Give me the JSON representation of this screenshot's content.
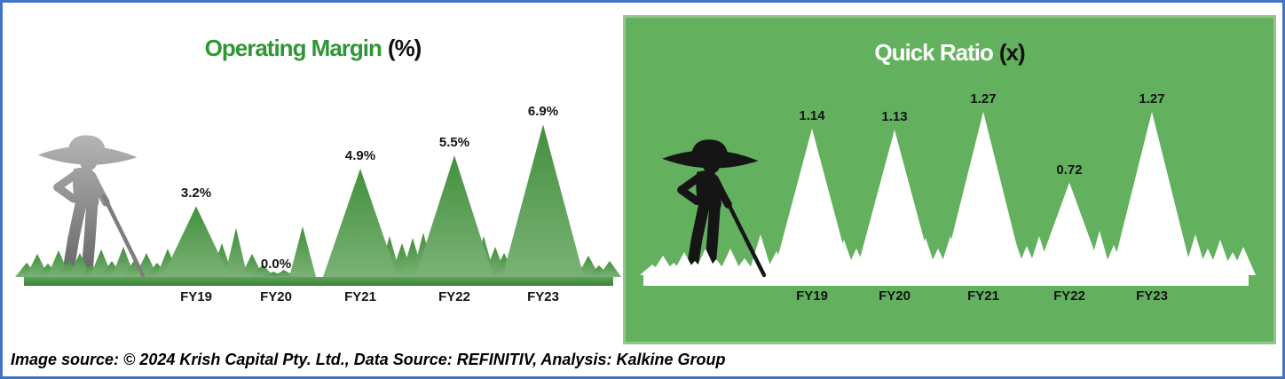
{
  "frame": {
    "border_color": "#4472C4",
    "panel_green": "#63B15F"
  },
  "charts": {
    "left": {
      "title_main": "Operating Margin",
      "title_suffix": "(%)",
      "title_color": "#2E9734"
    },
    "right": {
      "title_main": "Quick Ratio",
      "title_suffix": "(x)",
      "title_color": "#FFFFFF"
    }
  },
  "chart_data": [
    {
      "type": "area",
      "title": "Operating Margin (%)",
      "categories": [
        "FY19",
        "FY20",
        "FY21",
        "FY22",
        "FY23"
      ],
      "values": [
        3.2,
        0.0,
        4.9,
        5.5,
        6.9
      ],
      "value_labels": [
        "3.2%",
        "0.0%",
        "4.9%",
        "5.5%",
        "6.9%"
      ],
      "unit": "%",
      "ylim": [
        0,
        7.5
      ],
      "legend": "none",
      "grid": "off",
      "palette": {
        "peak_top": "#43903E",
        "peak_bottom": "#7BB276",
        "background": "#FFFFFF",
        "label": "#141414"
      }
    },
    {
      "type": "area",
      "title": "Quick Ratio (x)",
      "categories": [
        "FY19",
        "FY20",
        "FY21",
        "FY22",
        "FY23"
      ],
      "values": [
        1.14,
        1.13,
        1.27,
        0.72,
        1.27
      ],
      "value_labels": [
        "1.14",
        "1.13",
        "1.27",
        "0.72",
        "1.27"
      ],
      "unit": "x",
      "ylim": [
        0,
        1.4
      ],
      "legend": "none",
      "grid": "off",
      "palette": {
        "peak": "#FFFFFF",
        "background": "#63B15F",
        "label": "#141414"
      }
    }
  ],
  "footer": {
    "text": "Image source: © 2024 Krish Capital Pty. Ltd., Data Source: REFINITIV, Analysis: Kalkine Group"
  }
}
